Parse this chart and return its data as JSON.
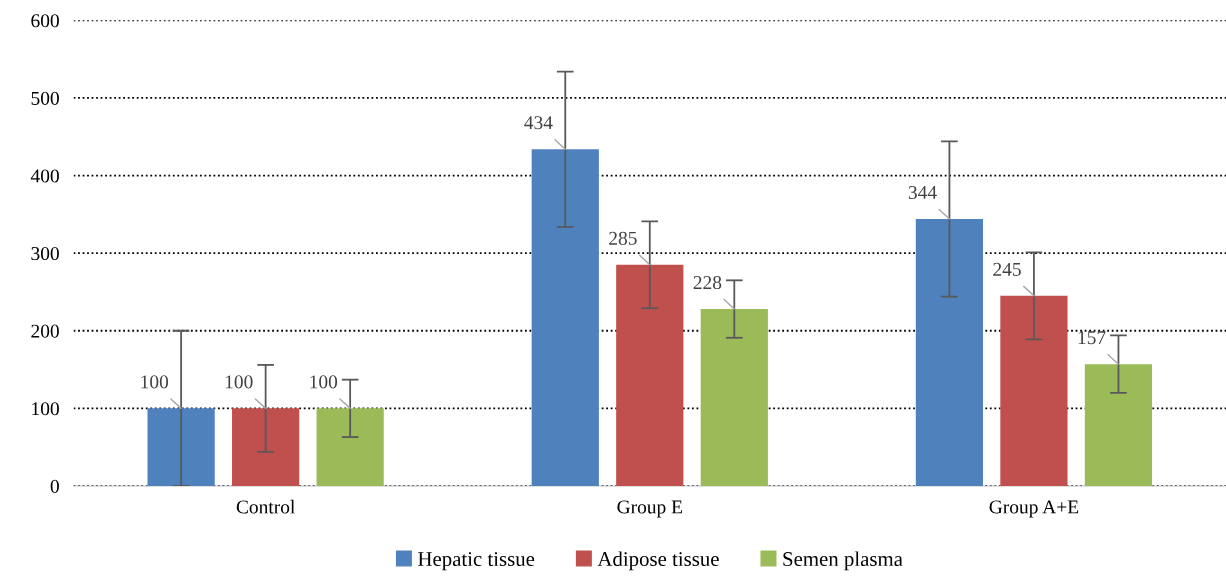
{
  "chart_data": {
    "type": "bar",
    "categories": [
      "Control",
      "Group E",
      "Group A+E"
    ],
    "series": [
      {
        "name": "Hepatic tissue",
        "color": "#4f81bd",
        "values": [
          100,
          434,
          344
        ],
        "errors": [
          100,
          100,
          100
        ]
      },
      {
        "name": "Adipose tissue",
        "color": "#c0504d",
        "values": [
          100,
          285,
          245
        ],
        "errors": [
          56,
          56,
          56
        ]
      },
      {
        "name": "Semen plasma",
        "color": "#9bbb59",
        "values": [
          100,
          228,
          157
        ],
        "errors": [
          37,
          37,
          37
        ]
      }
    ],
    "ylim": [
      0,
      600
    ],
    "yticks": [
      0,
      100,
      200,
      300,
      400,
      500,
      600
    ],
    "grid": "y",
    "legend": "bottom",
    "data_labels": true
  }
}
